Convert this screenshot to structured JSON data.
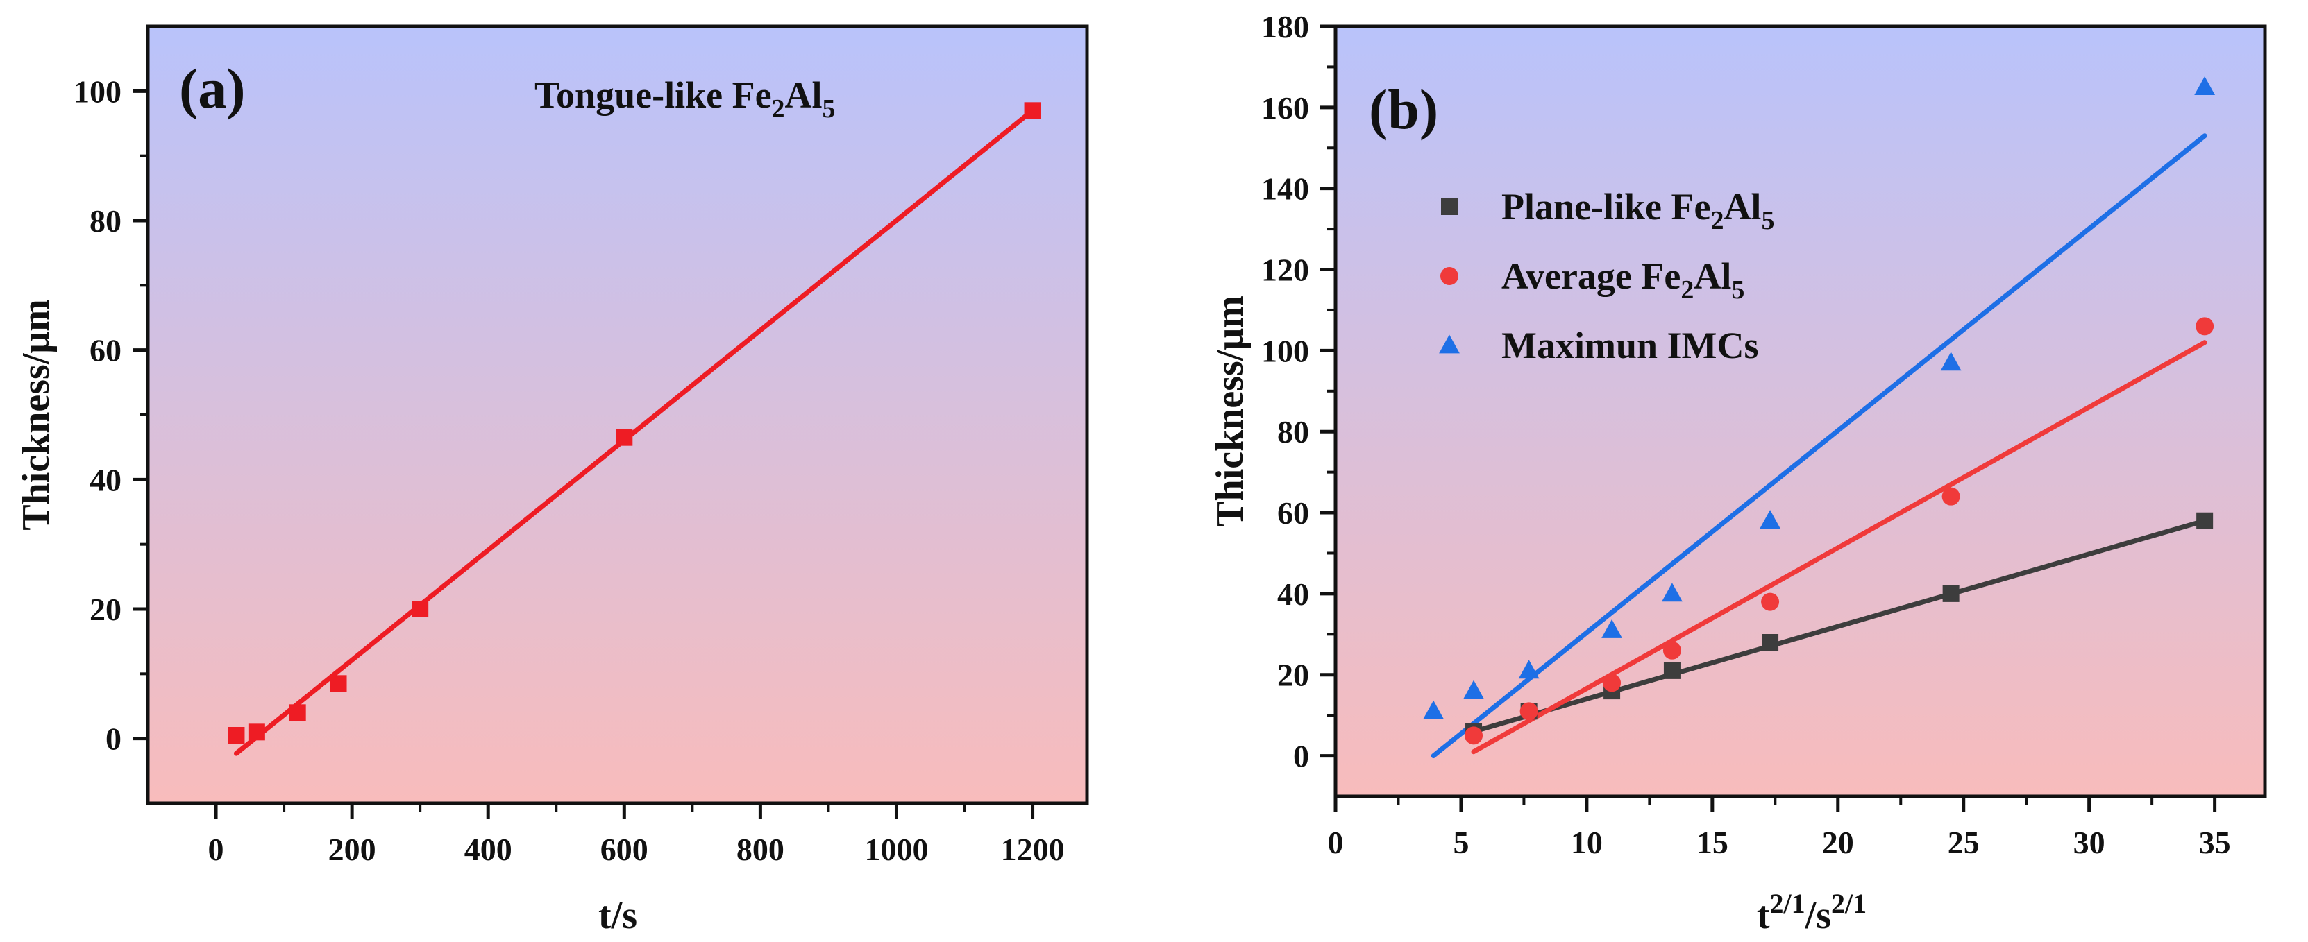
{
  "chart_data": [
    {
      "type": "scatter",
      "panel_label": "(a)",
      "annotation": {
        "main": "Tongue-like Fe",
        "sub1": "2",
        "mid": "Al",
        "sub2": "5"
      },
      "xlabel": "t/s",
      "ylabel": "Thickness/μm",
      "xlim": [
        -100,
        1280
      ],
      "ylim": [
        -10,
        110
      ],
      "xticks": [
        0,
        200,
        400,
        600,
        800,
        1000,
        1200
      ],
      "yticks": [
        0,
        20,
        40,
        60,
        80,
        100
      ],
      "background": {
        "top": "#b9c3fb",
        "bottom": "#f8bcbc"
      },
      "series": [
        {
          "marker": "square",
          "color": "#ee1c24",
          "points": [
            [
              30,
              0.5
            ],
            [
              60,
              1.0
            ],
            [
              120,
              4.0
            ],
            [
              180,
              8.5
            ],
            [
              300,
              20.0
            ],
            [
              600,
              46.5
            ],
            [
              1200,
              97.0
            ]
          ],
          "fit": [
            [
              30,
              -2.3
            ],
            [
              1200,
              97.0
            ]
          ]
        }
      ]
    },
    {
      "type": "scatter",
      "panel_label": "(b)",
      "xlabel": {
        "base": "t",
        "exp": "2/1",
        "mid": "/s",
        "exp2": "2/1"
      },
      "ylabel": "Thickness/μm",
      "xlim": [
        0,
        37
      ],
      "ylim": [
        -10,
        180
      ],
      "xticks": [
        0,
        5,
        10,
        15,
        20,
        25,
        30,
        35
      ],
      "yticks": [
        0,
        20,
        40,
        60,
        80,
        100,
        120,
        140,
        160,
        180
      ],
      "legend_position": "top-left",
      "background": {
        "top": "#b9c3fb",
        "bottom": "#f8bcbc"
      },
      "series": [
        {
          "name": {
            "main": "Plane-like Fe",
            "sub1": "2",
            "mid": "Al",
            "sub2": "5"
          },
          "marker": "square",
          "color": "#3d3d3d",
          "points": [
            [
              5.5,
              6
            ],
            [
              7.7,
              11
            ],
            [
              11.0,
              16
            ],
            [
              13.4,
              21
            ],
            [
              17.3,
              28
            ],
            [
              24.5,
              40
            ],
            [
              34.6,
              58
            ]
          ],
          "fit": [
            [
              5.5,
              6
            ],
            [
              34.6,
              58
            ]
          ]
        },
        {
          "name": {
            "main": "Average Fe",
            "sub1": "2",
            "mid": "Al",
            "sub2": "5"
          },
          "marker": "circle",
          "color": "#f03a3a",
          "points": [
            [
              5.5,
              5
            ],
            [
              7.7,
              11
            ],
            [
              11.0,
              18
            ],
            [
              13.4,
              26
            ],
            [
              17.3,
              38
            ],
            [
              24.5,
              64
            ],
            [
              34.6,
              106
            ]
          ],
          "fit": [
            [
              5.5,
              1
            ],
            [
              34.6,
              102
            ]
          ]
        },
        {
          "name": {
            "main": "Maximun IMCs"
          },
          "marker": "triangle",
          "color": "#1e6fe6",
          "points": [
            [
              3.9,
              11
            ],
            [
              5.5,
              16
            ],
            [
              7.7,
              21
            ],
            [
              11.0,
              31
            ],
            [
              13.4,
              40
            ],
            [
              17.3,
              58
            ],
            [
              24.5,
              97
            ],
            [
              34.6,
              165
            ]
          ],
          "fit": [
            [
              3.9,
              0
            ],
            [
              34.6,
              153
            ]
          ]
        }
      ]
    }
  ]
}
